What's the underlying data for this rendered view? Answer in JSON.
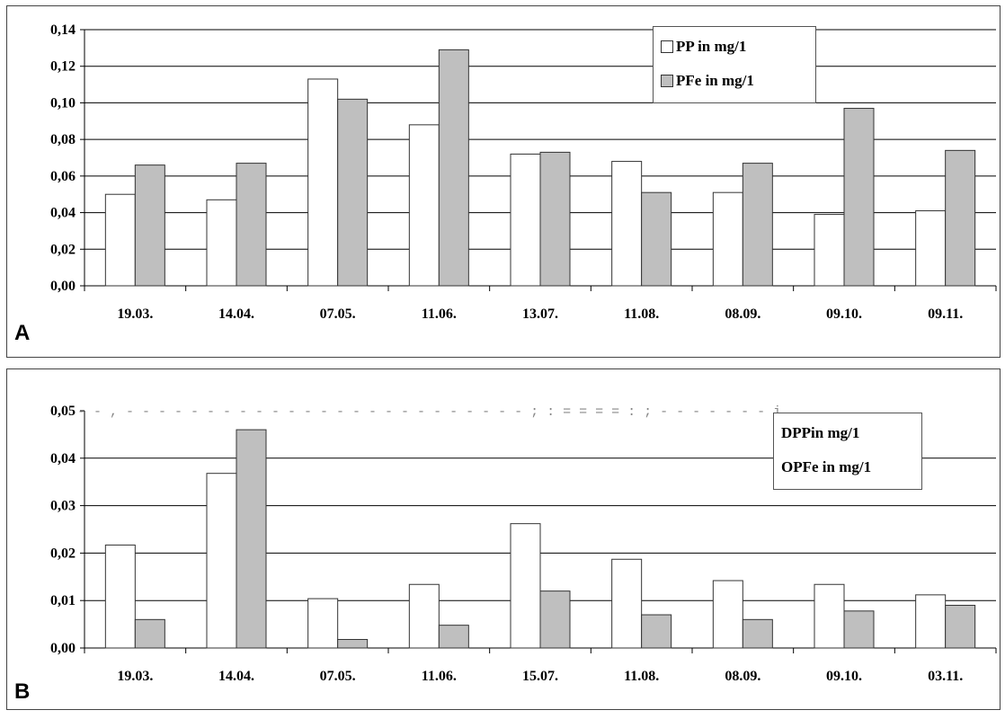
{
  "chart_data": [
    {
      "panel_label": "A",
      "type": "bar",
      "categories": [
        "19.03.",
        "14.04.",
        "07.05.",
        "11.06.",
        "13.07.",
        "11.08.",
        "08.09.",
        "09.10.",
        "09.11."
      ],
      "series": [
        {
          "name": "PP in mg/1",
          "color": "#ffffff",
          "values": [
            0.05,
            0.047,
            0.113,
            0.088,
            0.072,
            0.068,
            0.051,
            0.039,
            0.041
          ]
        },
        {
          "name": "PFe in mg/1",
          "color": "#bfbfbf",
          "values": [
            0.066,
            0.067,
            0.102,
            0.129,
            0.073,
            0.051,
            0.067,
            0.097,
            0.074
          ]
        }
      ],
      "yticks": [
        "0,00",
        "0,02",
        "0,04",
        "0,06",
        "0,08",
        "0,10",
        "0,12",
        "0,14"
      ],
      "ylim": [
        0,
        0.14
      ],
      "grid": true,
      "legend_position": "top-right"
    },
    {
      "panel_label": "B",
      "type": "bar",
      "categories": [
        "19.03.",
        "14.04.",
        "07.05.",
        "11.06.",
        "15.07.",
        "11.08.",
        "08.09.",
        "09.10.",
        "03.11."
      ],
      "series": [
        {
          "name": "DPPin mg/1",
          "color": "#ffffff",
          "values": [
            0.0217,
            0.0368,
            0.0104,
            0.0134,
            0.0262,
            0.0187,
            0.0142,
            0.0134,
            0.0112
          ]
        },
        {
          "name": "OPFe in mg/1",
          "color": "#bfbfbf",
          "values": [
            0.006,
            0.046,
            0.0018,
            0.0048,
            0.012,
            0.007,
            0.006,
            0.0078,
            0.009
          ]
        }
      ],
      "yticks": [
        "0,00",
        "0,01",
        "0,02",
        "0,03",
        "0,04",
        "0,05"
      ],
      "ylim": [
        0,
        0.05
      ],
      "grid": true,
      "legend_position": "top-right",
      "top_gridline_text": "- - ,  - - - - - - - - - - - - - - - - - - - - - - - - - ; : = = = = : ; - - - - - - - i"
    }
  ]
}
